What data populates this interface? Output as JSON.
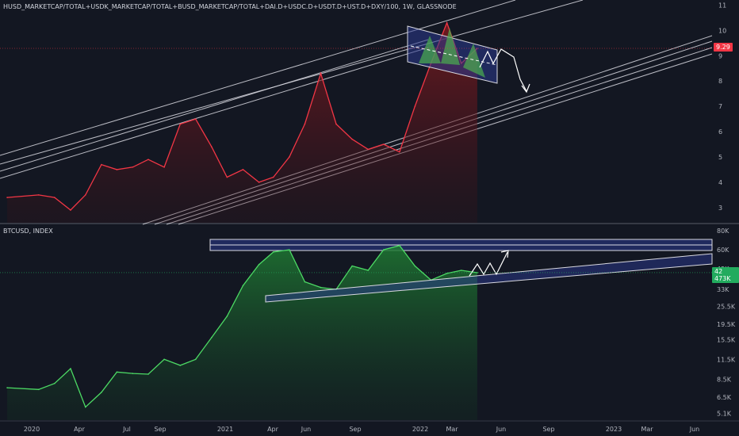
{
  "top_panel": {
    "title": "HUSD_MARKETCAP/TOTAL+USDK_MARKETCAP/TOTAL+BUSD_MARKETCAP/TOTAL+DAI.D+USDC.D+USDT.D+UST.D+DXY/100, 1W, GLASSNODE",
    "price_badge": "9.29",
    "badge_color": "#f23645",
    "line_color": "#f23645"
  },
  "bottom_panel": {
    "title": "BTCUSD, INDEX",
    "price_badge": "42 473K",
    "badge_color": "#22ab5e",
    "line_color": "#4cd964"
  },
  "x_axis_labels": [
    "2020",
    "Apr",
    "Jul",
    "Sep",
    "2021",
    "Apr",
    "Jun",
    "Sep",
    "2022",
    "Mar",
    "Jun",
    "Sep",
    "2023",
    "Mar",
    "Jun"
  ],
  "chart_data": [
    {
      "type": "area",
      "yticks": [
        "3",
        "4",
        "5",
        "6",
        "7",
        "8",
        "9",
        "10",
        "11"
      ],
      "ylim": [
        2.4,
        11.2
      ],
      "x": [
        "2019-10",
        "2019-12",
        "2020-01",
        "2020-02",
        "2020-03",
        "2020-04",
        "2020-05",
        "2020-06",
        "2020-07",
        "2020-08",
        "2020-09",
        "2020-10",
        "2020-11",
        "2020-12",
        "2021-01",
        "2021-02",
        "2021-03",
        "2021-04",
        "2021-05",
        "2021-06",
        "2021-07",
        "2021-08",
        "2021-09",
        "2021-10",
        "2021-11",
        "2021-12",
        "2022-01",
        "2022-02",
        "2022-03",
        "2022-04"
      ],
      "values": [
        3.4,
        3.5,
        3.4,
        2.9,
        3.5,
        4.7,
        4.5,
        4.6,
        4.9,
        4.6,
        6.3,
        6.5,
        5.4,
        4.2,
        4.5,
        4.0,
        4.2,
        5.0,
        6.3,
        8.3,
        6.3,
        5.7,
        5.3,
        5.5,
        5.2,
        7.0,
        8.7,
        10.3,
        8.7,
        9.29
      ]
    },
    {
      "type": "area",
      "yscale": "log",
      "yticks": [
        "5.1K",
        "6.5K",
        "8.5K",
        "11.5K",
        "15.5K",
        "19.5K",
        "25.5K",
        "33K",
        "45K",
        "60K",
        "80K"
      ],
      "ylim": [
        4600,
        88000
      ],
      "x": [
        "2019-10",
        "2019-12",
        "2020-01",
        "2020-02",
        "2020-03",
        "2020-04",
        "2020-05",
        "2020-06",
        "2020-07",
        "2020-08",
        "2020-09",
        "2020-10",
        "2020-11",
        "2020-12",
        "2021-01",
        "2021-02",
        "2021-03",
        "2021-04",
        "2021-05",
        "2021-06",
        "2021-07",
        "2021-08",
        "2021-09",
        "2021-10",
        "2021-11",
        "2021-12",
        "2022-01",
        "2022-02",
        "2022-03",
        "2022-04"
      ],
      "values": [
        7500,
        7300,
        8000,
        10000,
        5600,
        7000,
        9500,
        9300,
        9200,
        11500,
        10500,
        11500,
        16000,
        22000,
        35000,
        48000,
        58000,
        60000,
        37000,
        34000,
        33000,
        47000,
        44000,
        60000,
        64000,
        47000,
        38000,
        42000,
        44000,
        42473
      ]
    }
  ]
}
